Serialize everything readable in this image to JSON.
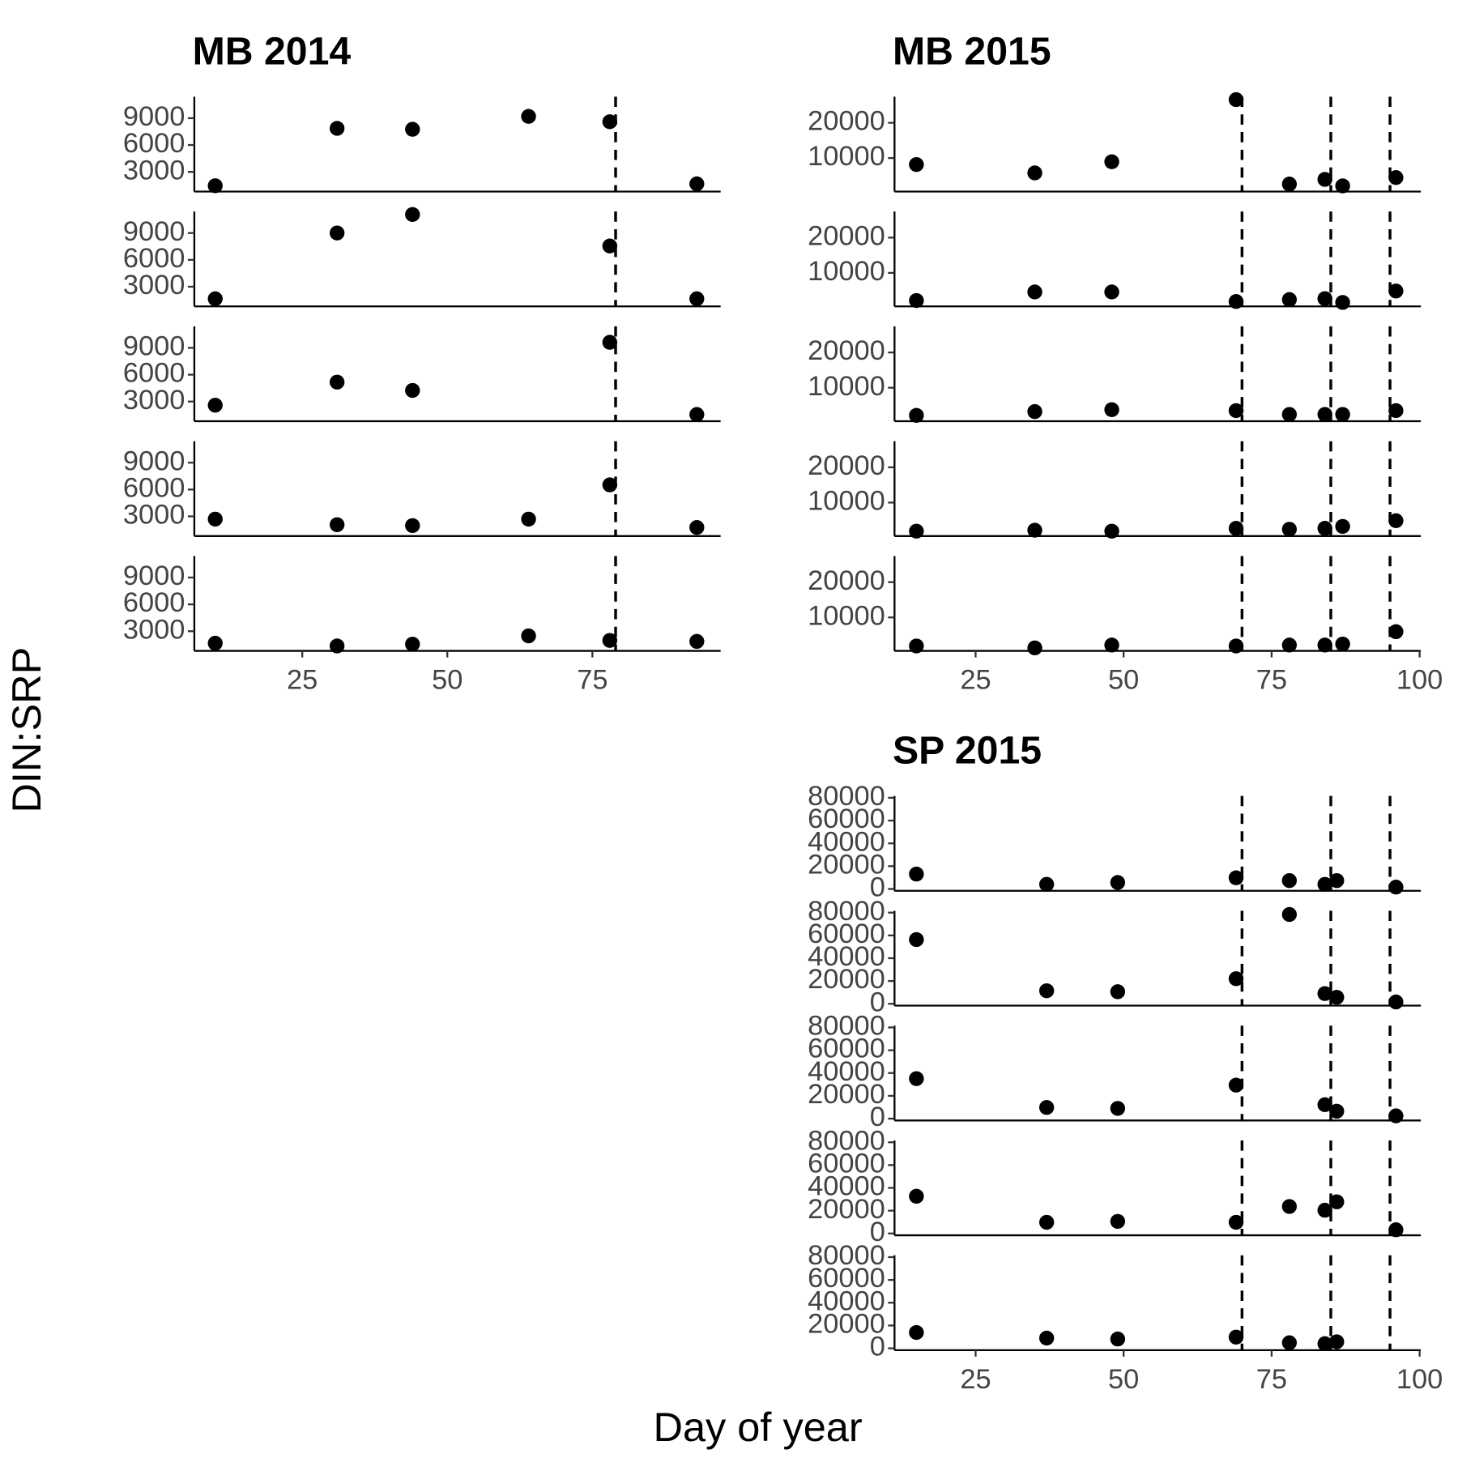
{
  "y_label": "DIN:SRP",
  "x_label": "Day of year",
  "chart_data": [
    {
      "type": "scatter",
      "title": "MB 2014",
      "x": [
        10,
        31,
        44,
        64,
        78,
        93
      ],
      "xlim": [
        6.4,
        97.1
      ],
      "xticks": [
        25,
        50,
        75
      ],
      "ylim": [
        800,
        11400
      ],
      "yticks": [
        3000,
        6000,
        9000
      ],
      "vlines": [
        79
      ],
      "color": "#000000",
      "panels": [
        {
          "values": [
            1450,
            7860,
            7760,
            9200,
            8600,
            1660
          ]
        },
        {
          "values": [
            1650,
            9000,
            11070,
            null,
            7550,
            1650
          ]
        },
        {
          "values": [
            2590,
            5170,
            4240,
            null,
            9620,
            1550
          ]
        },
        {
          "values": [
            2690,
            2070,
            1970,
            2690,
            6520,
            1760
          ]
        },
        {
          "values": [
            1660,
            1350,
            1550,
            2480,
            1970,
            1860
          ]
        }
      ]
    },
    {
      "type": "scatter",
      "title": "MB 2015",
      "x": [
        15,
        35,
        48,
        69,
        78,
        84,
        87,
        96
      ],
      "xlim": [
        11.3,
        100.2
      ],
      "xticks": [
        25,
        50,
        75,
        100
      ],
      "ylim": [
        500,
        27400
      ],
      "yticks": [
        10000,
        20000
      ],
      "vlines": [
        70,
        85,
        95
      ],
      "color": "#000000",
      "panels": [
        {
          "values": [
            8160,
            5790,
            8950,
            26580,
            2630,
            3950,
            2110,
            4470
          ]
        },
        {
          "values": [
            2160,
            4590,
            4590,
            1890,
            2430,
            2700,
            1620,
            4860
          ]
        },
        {
          "values": [
            2160,
            3240,
            3780,
            3510,
            2430,
            2430,
            2430,
            3510
          ]
        },
        {
          "values": [
            1890,
            2160,
            1890,
            2700,
            2430,
            2700,
            3240,
            4860
          ]
        },
        {
          "values": [
            1890,
            1350,
            2160,
            1890,
            2160,
            2160,
            2430,
            5950
          ]
        }
      ]
    },
    {
      "type": "scatter",
      "title": "SP 2015",
      "x": [
        15,
        37,
        49,
        69,
        78,
        84,
        86,
        96
      ],
      "xlim": [
        11.3,
        100.2
      ],
      "xticks": [
        25,
        50,
        75,
        100
      ],
      "ylim": [
        -1600,
        81600
      ],
      "yticks": [
        0,
        20000,
        40000,
        60000,
        80000
      ],
      "vlines": [
        70,
        85,
        95
      ],
      "color": "#000000",
      "panels": [
        {
          "values": [
            13060,
            4080,
            5710,
            9800,
            7350,
            4080,
            7350,
            1630
          ]
        },
        {
          "values": [
            56330,
            11430,
            10610,
            22040,
            78370,
            8980,
            5710,
            1630
          ]
        },
        {
          "values": [
            35100,
            9800,
            8980,
            29390,
            null,
            12240,
            6530,
            2450
          ]
        },
        {
          "values": [
            32650,
            9800,
            10610,
            9800,
            23670,
            20410,
            27760,
            3270
          ]
        },
        {
          "values": [
            13880,
            8980,
            8160,
            9800,
            4900,
            4080,
            5710,
            null
          ]
        }
      ]
    }
  ]
}
